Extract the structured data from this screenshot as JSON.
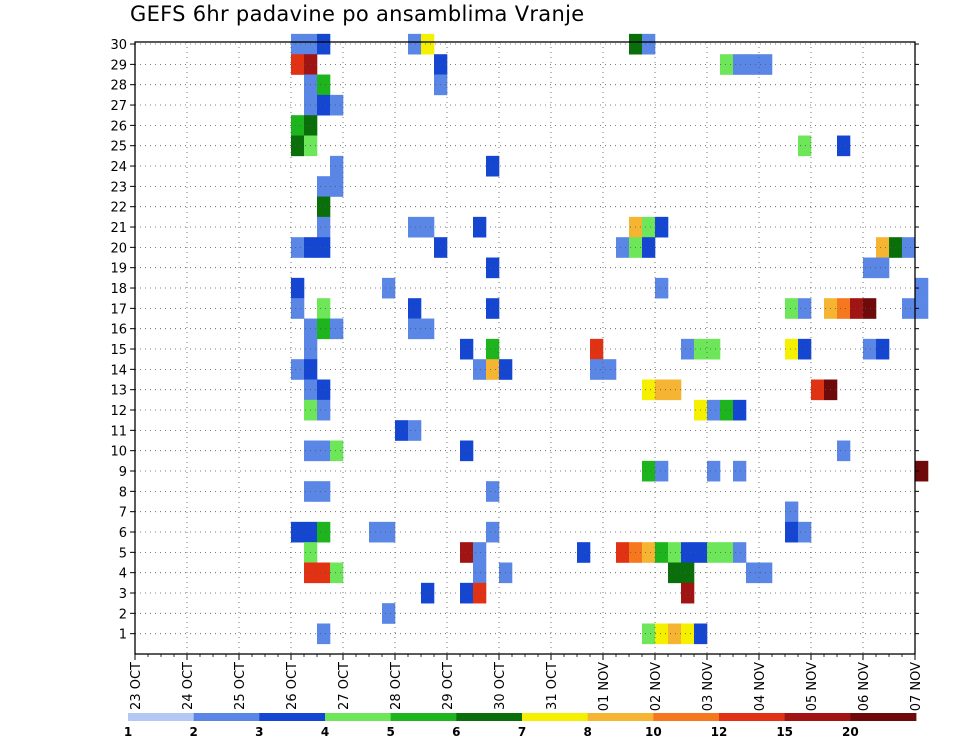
{
  "chart_data": {
    "type": "heatmap",
    "title": "GEFS 6hr padavine po ansamblima Vranje",
    "y_ticks": [
      "1",
      "2",
      "3",
      "4",
      "5",
      "6",
      "7",
      "8",
      "9",
      "10",
      "11",
      "12",
      "13",
      "14",
      "15",
      "16",
      "17",
      "18",
      "19",
      "20",
      "21",
      "22",
      "23",
      "24",
      "25",
      "26",
      "27",
      "28",
      "29",
      "30"
    ],
    "ylim": [
      0,
      30
    ],
    "x_ticks": [
      "23 OCT",
      "24 OCT",
      "25 OCT",
      "26 OCT",
      "27 OCT",
      "28 OCT",
      "29 OCT",
      "30 OCT",
      "31 OCT",
      "01 NOV",
      "02 NOV",
      "03 NOV",
      "04 NOV",
      "05 NOV",
      "06 NOV",
      "07 NOV"
    ],
    "x_step_hours": 6,
    "x_start": "23 OCT 00Z",
    "grid": true,
    "colorbar": {
      "labels": [
        "1",
        "2",
        "3",
        "4",
        "5",
        "6",
        "7",
        "8",
        "10",
        "12",
        "15",
        "20"
      ],
      "colors": [
        "#b4c8f5",
        "#5a87e6",
        "#1446d2",
        "#6ee65a",
        "#1eb41e",
        "#0a6e0a",
        "#f5f000",
        "#f5b432",
        "#f5781e",
        "#e13214",
        "#a01414",
        "#6e0a0a"
      ]
    },
    "cells": [
      [
        12,
        30,
        1
      ],
      [
        13,
        30,
        1
      ],
      [
        14,
        30,
        2
      ],
      [
        21,
        30,
        1
      ],
      [
        22,
        30,
        6
      ],
      [
        38,
        30,
        5
      ],
      [
        39,
        30,
        1
      ],
      [
        12,
        29,
        9
      ],
      [
        13,
        29,
        10
      ],
      [
        23,
        29,
        2
      ],
      [
        45,
        29,
        3
      ],
      [
        46,
        29,
        1
      ],
      [
        47,
        29,
        1
      ],
      [
        48,
        29,
        1
      ],
      [
        13,
        28,
        1
      ],
      [
        14,
        28,
        4
      ],
      [
        23,
        28,
        1
      ],
      [
        13,
        27,
        1
      ],
      [
        14,
        27,
        2
      ],
      [
        15,
        27,
        1
      ],
      [
        12,
        26,
        4
      ],
      [
        13,
        26,
        5
      ],
      [
        12,
        25,
        5
      ],
      [
        13,
        25,
        3
      ],
      [
        51,
        25,
        3
      ],
      [
        54,
        25,
        2
      ],
      [
        15,
        24,
        1
      ],
      [
        27,
        24,
        2
      ],
      [
        14,
        23,
        1
      ],
      [
        15,
        23,
        1
      ],
      [
        14,
        22,
        5
      ],
      [
        14,
        21,
        1
      ],
      [
        21,
        21,
        1
      ],
      [
        22,
        21,
        1
      ],
      [
        26,
        21,
        2
      ],
      [
        38,
        21,
        7
      ],
      [
        39,
        21,
        3
      ],
      [
        40,
        21,
        2
      ],
      [
        12,
        20,
        1
      ],
      [
        13,
        20,
        2
      ],
      [
        14,
        20,
        2
      ],
      [
        23,
        20,
        2
      ],
      [
        37,
        20,
        1
      ],
      [
        38,
        20,
        3
      ],
      [
        39,
        20,
        2
      ],
      [
        57,
        20,
        7
      ],
      [
        58,
        20,
        5
      ],
      [
        59,
        20,
        1
      ],
      [
        27,
        19,
        2
      ],
      [
        56,
        19,
        1
      ],
      [
        57,
        19,
        1
      ],
      [
        12,
        18,
        2
      ],
      [
        19,
        18,
        1
      ],
      [
        40,
        18,
        1
      ],
      [
        60,
        18,
        1
      ],
      [
        12,
        17,
        1
      ],
      [
        14,
        17,
        3
      ],
      [
        21,
        17,
        2
      ],
      [
        27,
        17,
        2
      ],
      [
        50,
        17,
        3
      ],
      [
        51,
        17,
        1
      ],
      [
        53,
        17,
        7
      ],
      [
        54,
        17,
        8
      ],
      [
        55,
        17,
        10
      ],
      [
        56,
        17,
        11
      ],
      [
        59,
        17,
        1
      ],
      [
        60,
        17,
        1
      ],
      [
        13,
        16,
        1
      ],
      [
        14,
        16,
        4
      ],
      [
        15,
        16,
        1
      ],
      [
        21,
        16,
        1
      ],
      [
        22,
        16,
        1
      ],
      [
        13,
        15,
        1
      ],
      [
        25,
        15,
        2
      ],
      [
        27,
        15,
        4
      ],
      [
        35,
        15,
        9
      ],
      [
        42,
        15,
        1
      ],
      [
        43,
        15,
        3
      ],
      [
        44,
        15,
        3
      ],
      [
        50,
        15,
        6
      ],
      [
        51,
        15,
        2
      ],
      [
        56,
        15,
        1
      ],
      [
        57,
        15,
        2
      ],
      [
        12,
        14,
        1
      ],
      [
        13,
        14,
        2
      ],
      [
        26,
        14,
        1
      ],
      [
        27,
        14,
        7
      ],
      [
        28,
        14,
        2
      ],
      [
        35,
        14,
        1
      ],
      [
        36,
        14,
        1
      ],
      [
        13,
        13,
        1
      ],
      [
        14,
        13,
        2
      ],
      [
        39,
        13,
        6
      ],
      [
        40,
        13,
        7
      ],
      [
        41,
        13,
        7
      ],
      [
        52,
        13,
        9
      ],
      [
        53,
        13,
        11
      ],
      [
        13,
        12,
        3
      ],
      [
        14,
        12,
        1
      ],
      [
        43,
        12,
        6
      ],
      [
        44,
        12,
        1
      ],
      [
        45,
        12,
        4
      ],
      [
        46,
        12,
        2
      ],
      [
        20,
        11,
        2
      ],
      [
        21,
        11,
        1
      ],
      [
        13,
        10,
        1
      ],
      [
        14,
        10,
        1
      ],
      [
        15,
        10,
        3
      ],
      [
        25,
        10,
        2
      ],
      [
        54,
        10,
        1
      ],
      [
        39,
        9,
        4
      ],
      [
        40,
        9,
        1
      ],
      [
        44,
        9,
        1
      ],
      [
        46,
        9,
        1
      ],
      [
        60,
        9,
        11
      ],
      [
        13,
        8,
        1
      ],
      [
        14,
        8,
        1
      ],
      [
        27,
        8,
        1
      ],
      [
        50,
        7,
        1
      ],
      [
        12,
        6,
        2
      ],
      [
        13,
        6,
        2
      ],
      [
        14,
        6,
        4
      ],
      [
        18,
        6,
        1
      ],
      [
        19,
        6,
        1
      ],
      [
        27,
        6,
        1
      ],
      [
        50,
        6,
        2
      ],
      [
        51,
        6,
        1
      ],
      [
        13,
        5,
        3
      ],
      [
        25,
        5,
        10
      ],
      [
        26,
        5,
        1
      ],
      [
        34,
        5,
        2
      ],
      [
        37,
        5,
        9
      ],
      [
        38,
        5,
        8
      ],
      [
        39,
        5,
        7
      ],
      [
        40,
        5,
        4
      ],
      [
        41,
        5,
        3
      ],
      [
        42,
        5,
        2
      ],
      [
        43,
        5,
        2
      ],
      [
        44,
        5,
        3
      ],
      [
        45,
        5,
        3
      ],
      [
        46,
        5,
        1
      ],
      [
        13,
        4,
        9
      ],
      [
        14,
        4,
        9
      ],
      [
        15,
        4,
        3
      ],
      [
        26,
        4,
        1
      ],
      [
        28,
        4,
        1
      ],
      [
        41,
        4,
        5
      ],
      [
        42,
        4,
        5
      ],
      [
        47,
        4,
        1
      ],
      [
        48,
        4,
        1
      ],
      [
        22,
        3,
        2
      ],
      [
        25,
        3,
        2
      ],
      [
        26,
        3,
        9
      ],
      [
        42,
        3,
        10
      ],
      [
        19,
        2,
        1
      ],
      [
        14,
        1,
        1
      ],
      [
        39,
        1,
        3
      ],
      [
        40,
        1,
        6
      ],
      [
        41,
        1,
        7
      ],
      [
        42,
        1,
        6
      ],
      [
        43,
        1,
        2
      ]
    ]
  }
}
